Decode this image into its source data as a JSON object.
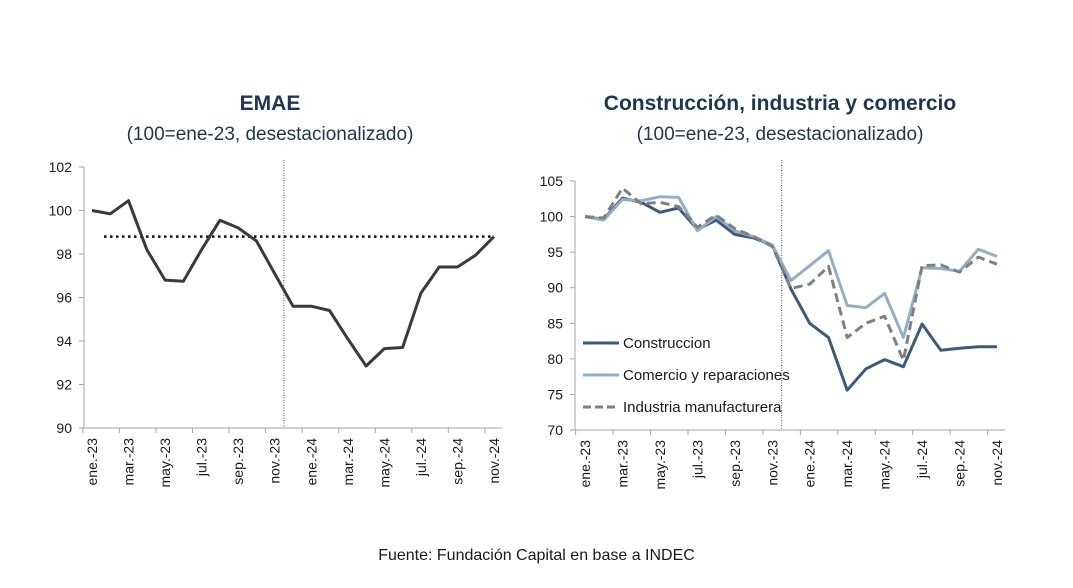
{
  "chart_data": [
    {
      "type": "line",
      "title": "EMAE",
      "subtitle": "(100=ene-23, desestacionalizado)",
      "xlabel": "",
      "ylabel": "",
      "ylim": [
        90,
        102
      ],
      "yticks": [
        90,
        92,
        94,
        96,
        98,
        100,
        102
      ],
      "x": [
        "ene.-23",
        "feb.-23",
        "mar.-23",
        "abr.-23",
        "may.-23",
        "jun.-23",
        "jul.-23",
        "ago.-23",
        "sep.-23",
        "oct.-23",
        "nov.-23",
        "dic.-23",
        "ene.-24",
        "feb.-24",
        "mar.-24",
        "abr.-24",
        "may.-24",
        "jun.-24",
        "jul.-24",
        "ago.-24",
        "sep.-24",
        "oct.-24",
        "nov.-24"
      ],
      "xtick_labels": [
        "ene.-23",
        "mar.-23",
        "may.-23",
        "jul.-23",
        "sep.-23",
        "nov.-23",
        "ene.-24",
        "mar.-24",
        "may.-24",
        "jul.-24",
        "sep.-24",
        "nov.-24"
      ],
      "series": [
        {
          "name": "EMAE",
          "color": "#3a3a3a",
          "style": "solid",
          "values": [
            100.0,
            99.85,
            100.45,
            98.2,
            96.8,
            96.75,
            98.2,
            99.55,
            99.2,
            98.6,
            97.1,
            95.6,
            95.6,
            95.4,
            94.1,
            92.85,
            93.65,
            93.7,
            96.2,
            97.4,
            97.4,
            97.95,
            98.8
          ]
        }
      ],
      "reference_line": {
        "value": 98.8,
        "style": "dotted",
        "color": "#111111"
      },
      "vertical_marker": {
        "between": [
          "nov.-23",
          "dic.-23"
        ],
        "style": "dotted"
      },
      "grid": false,
      "legend": "none"
    },
    {
      "type": "line",
      "title": "Construcción, industria y comercio",
      "subtitle": "(100=ene-23, desestacionalizado)",
      "xlabel": "",
      "ylabel": "",
      "ylim": [
        70,
        105
      ],
      "yticks": [
        70,
        75,
        80,
        85,
        90,
        95,
        100,
        105
      ],
      "x": [
        "ene.-23",
        "feb.-23",
        "mar.-23",
        "abr.-23",
        "may.-23",
        "jun.-23",
        "jul.-23",
        "ago.-23",
        "sep.-23",
        "oct.-23",
        "nov.-23",
        "dic.-23",
        "ene.-24",
        "feb.-24",
        "mar.-24",
        "abr.-24",
        "may.-24",
        "jun.-24",
        "jul.-24",
        "ago.-24",
        "sep.-24",
        "oct.-24",
        "nov.-24"
      ],
      "xtick_labels": [
        "ene.-23",
        "mar.-23",
        "may.-23",
        "jul.-23",
        "sep.-23",
        "nov.-23",
        "ene.-24",
        "mar.-24",
        "may.-24",
        "jul.-24",
        "sep.-24",
        "nov.-24"
      ],
      "series": [
        {
          "name": "Construccion",
          "color": "#3d5a7a",
          "style": "solid",
          "values": [
            100.0,
            99.6,
            102.6,
            102.0,
            100.6,
            101.2,
            98.2,
            99.5,
            97.5,
            97.0,
            96.0,
            89.8,
            85.0,
            83.0,
            75.6,
            78.6,
            79.9,
            78.9,
            84.9,
            81.2,
            81.5,
            81.7,
            81.7
          ]
        },
        {
          "name": "Comercio y reparaciones",
          "color": "#93aecb",
          "style": "solid",
          "values": [
            100.0,
            99.5,
            102.4,
            102.2,
            102.8,
            102.7,
            98.0,
            100.0,
            98.0,
            97.2,
            96.0,
            91.0,
            93.1,
            95.2,
            87.5,
            87.2,
            89.2,
            83.0,
            92.8,
            92.7,
            92.3,
            95.4,
            94.4
          ]
        },
        {
          "name": "Industria manufacturera",
          "color": "#808080",
          "style": "dashed",
          "values": [
            100.0,
            99.8,
            104.0,
            101.8,
            102.0,
            101.4,
            98.5,
            100.2,
            98.3,
            97.2,
            95.8,
            89.9,
            90.5,
            93.0,
            83.0,
            85.0,
            86.0,
            79.8,
            93.1,
            93.2,
            92.2,
            94.3,
            93.3
          ]
        }
      ],
      "vertical_marker": {
        "between": [
          "nov.-23",
          "dic.-23"
        ],
        "style": "dotted"
      },
      "grid": false,
      "legend": "bottom-left"
    }
  ],
  "footer": "Fuente: Fundación Capital en base a INDEC"
}
